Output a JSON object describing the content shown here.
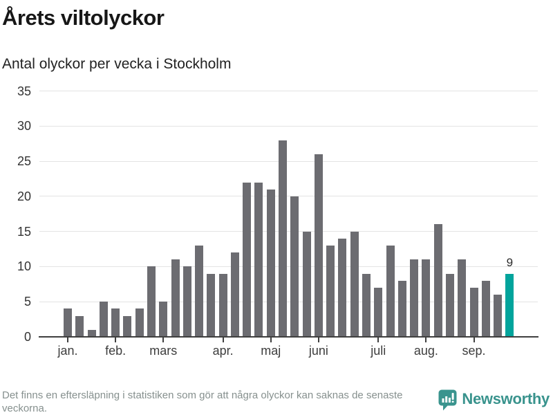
{
  "header": {
    "title": "Årets viltolyckor",
    "subtitle": "Antal olyckor per vecka i Stockholm"
  },
  "chart_data": {
    "type": "bar",
    "title": "Årets viltolyckor",
    "subtitle": "Antal olyckor per vecka i Stockholm",
    "unit": "olyckor per vecka",
    "ylim": [
      0,
      35
    ],
    "yticks": [
      0,
      5,
      10,
      15,
      20,
      25,
      30,
      35
    ],
    "grid": true,
    "bar_color": "#6c6c71",
    "highlight_color": "#02a49c",
    "values": [
      4,
      3,
      1,
      5,
      4,
      3,
      4,
      10,
      5,
      11,
      10,
      13,
      9,
      9,
      12,
      22,
      22,
      21,
      28,
      20,
      15,
      26,
      13,
      14,
      15,
      9,
      7,
      13,
      8,
      11,
      11,
      16,
      9,
      11,
      7,
      8,
      6,
      9
    ],
    "months": [
      {
        "label": "jan.",
        "start_week_index": 0
      },
      {
        "label": "feb.",
        "start_week_index": 4
      },
      {
        "label": "mars",
        "start_week_index": 8
      },
      {
        "label": "apr.",
        "start_week_index": 13
      },
      {
        "label": "maj",
        "start_week_index": 17
      },
      {
        "label": "juni",
        "start_week_index": 21
      },
      {
        "label": "juli",
        "start_week_index": 26
      },
      {
        "label": "aug.",
        "start_week_index": 30
      },
      {
        "label": "sep.",
        "start_week_index": 34
      }
    ],
    "highlight_index": 37,
    "highlight_label": "9",
    "legend": null
  },
  "footer": {
    "note": "Det finns en eftersläpning i statistiken som gör att några olyckor kan saknas de senaste veckorna.",
    "logo_text": "Newsworthy",
    "logo_color": "#39938d",
    "logo_icon_color": "#3a948e"
  }
}
